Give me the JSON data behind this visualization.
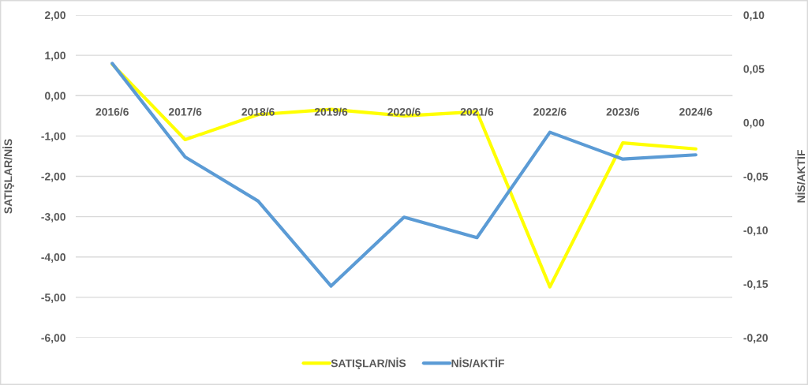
{
  "chart_data": {
    "type": "line",
    "categories": [
      "2016/6",
      "2017/6",
      "2018/6",
      "2019/6",
      "2020/6",
      "2021/6",
      "2022/6",
      "2023/6",
      "2024/6"
    ],
    "series": [
      {
        "name": "SATIŞLAR/NİS",
        "color": "#ffff00",
        "values": [
          0.78,
          -1.09,
          -0.47,
          -0.34,
          -0.5,
          -0.4,
          -4.74,
          -1.17,
          -1.32
        ]
      },
      {
        "name": "NİS/AKTİF",
        "color": "#5b9bd5",
        "axis": "y2",
        "values": [
          0.055,
          -0.032,
          -0.073,
          -0.152,
          -0.088,
          -0.107,
          -0.009,
          -0.034,
          -0.03
        ]
      }
    ],
    "ylabel": "SATIŞLAR/NİS",
    "y2label": "NİS/AKTİF",
    "ylim": [
      -6,
      2
    ],
    "yticks": [
      {
        "value": 2,
        "label": "2,00"
      },
      {
        "value": 1,
        "label": "1,00"
      },
      {
        "value": 0,
        "label": "0,00"
      },
      {
        "value": -1,
        "label": "-1,00"
      },
      {
        "value": -2,
        "label": "-2,00"
      },
      {
        "value": -3,
        "label": "-3,00"
      },
      {
        "value": -4,
        "label": "-4,00"
      },
      {
        "value": -5,
        "label": "-5,00"
      },
      {
        "value": -6,
        "label": "-6,00"
      }
    ],
    "y2lim": [
      -0.2,
      0.1
    ],
    "y2ticks": [
      {
        "value": 0.1,
        "label": "0,10"
      },
      {
        "value": 0.05,
        "label": "0,05"
      },
      {
        "value": 0,
        "label": "0,00"
      },
      {
        "value": -0.05,
        "label": "-0,05"
      },
      {
        "value": -0.1,
        "label": "-0,10"
      },
      {
        "value": -0.15,
        "label": "-0,15"
      },
      {
        "value": -0.2,
        "label": "-0,20"
      }
    ],
    "grid": "y",
    "legend": "bottom",
    "marker": "none",
    "line_style": "solid"
  }
}
